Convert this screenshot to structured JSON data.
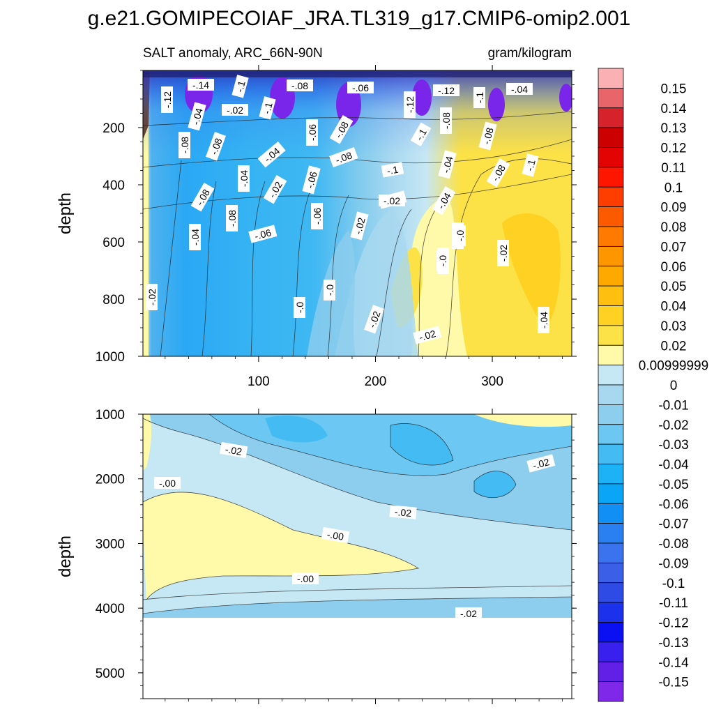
{
  "chart_data": {
    "type": "heatmap",
    "title": "g.e21.GOMIPECOIAF_JRA.TL319_g17.CMIP6-omip2.001",
    "subtitle_left": "SALT anomaly, ARC_66N-90N",
    "subtitle_right": "gram/kilogram",
    "ylabel": "depth",
    "xlim": [
      1,
      368
    ],
    "upper_panel": {
      "ylim": [
        1000,
        0
      ],
      "yticks": [
        "200",
        "400",
        "600",
        "800",
        "1000"
      ],
      "xticks": [
        "100",
        "200",
        "300"
      ],
      "contour_labels": [
        "-.12",
        "-.14",
        "-.1",
        "-.08",
        "-.06",
        "-.04",
        "-.02",
        "-.1",
        "-.08",
        "-.12",
        "-.08",
        "-.04",
        "-.06",
        "-.08",
        "-.12",
        "-.1",
        "-.08",
        "-.1",
        "-.08",
        "-.04",
        "-.08",
        "-.1",
        "-.04",
        "-.08",
        "-.1",
        "-.08",
        "-.04",
        "-.02",
        "-.06",
        "-.08",
        "-.06",
        "-.06",
        "-.04",
        "-.02",
        "-.04",
        "-.04",
        "-.02",
        "-.02",
        "-.06",
        "-.0",
        "-.0",
        "-.02",
        "-.04",
        "-.02",
        "-.02",
        "-.02",
        "-.0",
        "-.0"
      ]
    },
    "lower_panel": {
      "ylim": [
        5400,
        1000
      ],
      "yticks": [
        "1000",
        "2000",
        "3000",
        "4000",
        "5000"
      ],
      "contour_labels": [
        "-.02",
        "-.00",
        "-.02",
        "-.02",
        "-.00",
        "-.00",
        "-.02"
      ]
    },
    "colorbar": {
      "labels": [
        "0.15",
        "0.14",
        "0.13",
        "0.12",
        "0.11",
        "0.1",
        "0.09",
        "0.08",
        "0.07",
        "0.06",
        "0.05",
        "0.04",
        "0.03",
        "0.02",
        "0.00999999",
        "0",
        "-0.01",
        "-0.02",
        "-0.03",
        "-0.04",
        "-0.05",
        "-0.06",
        "-0.07",
        "-0.08",
        "-0.09",
        "-0.1",
        "-0.11",
        "-0.12",
        "-0.13",
        "-0.14",
        "-0.15"
      ],
      "colors": [
        "#fbb1b3",
        "#e8666a",
        "#d6222a",
        "#cc0000",
        "#e30303",
        "#fe1600",
        "#fe3d00",
        "#fd5a00",
        "#fe7a00",
        "#fe9600",
        "#fea900",
        "#ffbf10",
        "#ffd122",
        "#fde247",
        "#fffaa9",
        "#c6e7f4",
        "#a8d8f0",
        "#8dcdee",
        "#6cc8f2",
        "#45bbf3",
        "#1db1f5",
        "#0aa5f6",
        "#128ff5",
        "#2a80f1",
        "#3a73ed",
        "#3b5fe7",
        "#2e4be6",
        "#1c31ec",
        "#0b10f2",
        "#3a20ee",
        "#6220e7",
        "#8028ea"
      ]
    }
  }
}
